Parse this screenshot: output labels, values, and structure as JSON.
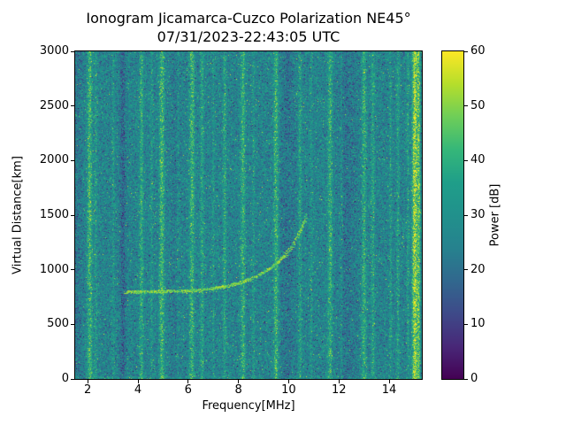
{
  "chart_data": {
    "type": "heatmap",
    "title": "Ionogram Jicamarca-Cuzco Polarization NE45°",
    "subtitle": "07/31/2023-22:43:05 UTC",
    "xlabel": "Frequency[MHz]",
    "ylabel": "Virtual Distance[km]",
    "colorbar_label": "Power [dB]",
    "xlim": [
      1.5,
      15.3
    ],
    "ylim": [
      0,
      3000
    ],
    "clim": [
      0,
      60
    ],
    "xticks": [
      2,
      4,
      6,
      8,
      10,
      12,
      14
    ],
    "yticks": [
      0,
      500,
      1000,
      1500,
      2000,
      2500,
      3000
    ],
    "cticks": [
      0,
      10,
      20,
      30,
      40,
      50,
      60
    ],
    "colormap": "viridis",
    "viridis_hex": [
      "#440154",
      "#482878",
      "#3e4a89",
      "#31688e",
      "#26828e",
      "#21918c",
      "#1f9e89",
      "#35b779",
      "#6ece58",
      "#b5de2b",
      "#fde725"
    ],
    "background_power_db": {
      "mean": 26,
      "spread": 16
    },
    "noise_seed": 42,
    "rfi_lines_mhz": [
      {
        "f": 2.08,
        "w": 0.1,
        "boost": 16
      },
      {
        "f": 2.32,
        "w": 0.06,
        "boost": 8
      },
      {
        "f": 3.02,
        "w": 0.05,
        "boost": 6
      },
      {
        "f": 4.14,
        "w": 0.08,
        "boost": 12
      },
      {
        "f": 4.55,
        "w": 0.05,
        "boost": 7
      },
      {
        "f": 4.95,
        "w": 0.1,
        "boost": 16
      },
      {
        "f": 5.6,
        "w": 0.05,
        "boost": 5
      },
      {
        "f": 6.15,
        "w": 0.1,
        "boost": 15
      },
      {
        "f": 6.55,
        "w": 0.07,
        "boost": 10
      },
      {
        "f": 7.0,
        "w": 0.05,
        "boost": 6
      },
      {
        "f": 7.45,
        "w": 0.07,
        "boost": 10
      },
      {
        "f": 8.18,
        "w": 0.09,
        "boost": 14
      },
      {
        "f": 8.6,
        "w": 0.05,
        "boost": 7
      },
      {
        "f": 9.5,
        "w": 0.1,
        "boost": 15
      },
      {
        "f": 10.45,
        "w": 0.07,
        "boost": 9
      },
      {
        "f": 10.9,
        "w": 0.05,
        "boost": 6
      },
      {
        "f": 11.65,
        "w": 0.09,
        "boost": 14
      },
      {
        "f": 12.1,
        "w": 0.05,
        "boost": 6
      },
      {
        "f": 13.0,
        "w": 0.09,
        "boost": 13
      },
      {
        "f": 13.35,
        "w": 0.07,
        "boost": 10
      },
      {
        "f": 14.05,
        "w": 0.05,
        "boost": 7
      },
      {
        "f": 14.35,
        "w": 0.06,
        "boost": 9
      },
      {
        "f": 14.75,
        "w": 0.05,
        "boost": 8
      },
      {
        "f": 15.02,
        "w": 0.1,
        "boost": 30
      },
      {
        "f": 15.18,
        "w": 0.06,
        "boost": 18
      }
    ],
    "dark_bands_mhz": [
      {
        "f": 1.6,
        "w": 0.2,
        "drop": 4
      },
      {
        "f": 3.4,
        "w": 0.12,
        "drop": 9
      },
      {
        "f": 5.45,
        "w": 0.2,
        "drop": 3
      },
      {
        "f": 9.95,
        "w": 0.3,
        "drop": 5
      },
      {
        "f": 12.35,
        "w": 0.35,
        "drop": 5
      }
    ],
    "echo_trace": {
      "points": [
        [
          3.45,
          790
        ],
        [
          4.0,
          795
        ],
        [
          4.5,
          798
        ],
        [
          5.0,
          800
        ],
        [
          5.5,
          803
        ],
        [
          6.0,
          808
        ],
        [
          6.5,
          815
        ],
        [
          7.0,
          828
        ],
        [
          7.5,
          845
        ],
        [
          8.0,
          875
        ],
        [
          8.5,
          915
        ],
        [
          9.0,
          975
        ],
        [
          9.5,
          1055
        ],
        [
          10.0,
          1170
        ],
        [
          10.3,
          1280
        ],
        [
          10.5,
          1370
        ],
        [
          10.65,
          1460
        ],
        [
          10.72,
          1520
        ]
      ]
    }
  }
}
